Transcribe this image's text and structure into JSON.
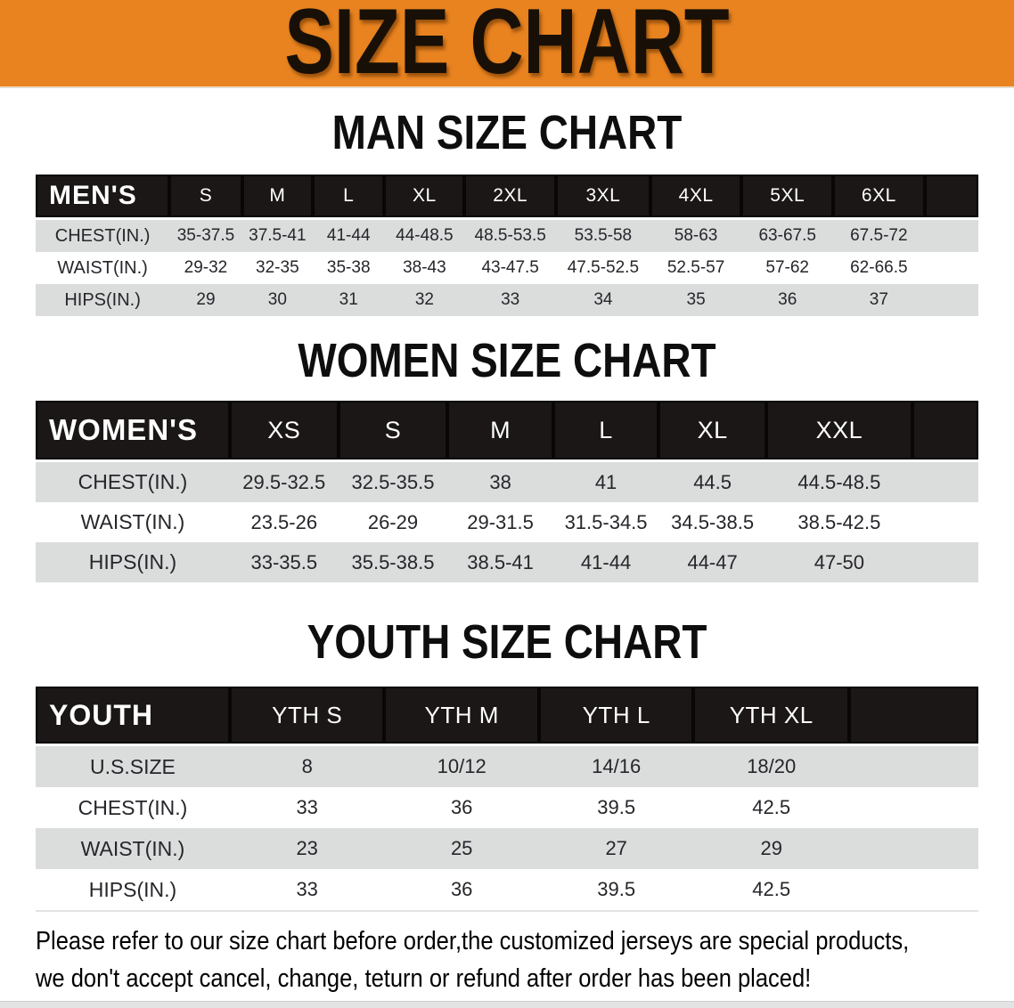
{
  "banner": {
    "title": "SIZE CHART",
    "bg_color": "#E8831F",
    "text_color": "#181007"
  },
  "chart_data": [
    {
      "type": "table",
      "title": "MAN SIZE CHART",
      "header_label": "MEN'S",
      "columns": [
        "S",
        "M",
        "L",
        "XL",
        "2XL",
        "3XL",
        "4XL",
        "5XL",
        "6XL"
      ],
      "rows": [
        {
          "label": "CHEST(IN.)",
          "values": [
            "35-37.5",
            "37.5-41",
            "41-44",
            "44-48.5",
            "48.5-53.5",
            "53.5-58",
            "58-63",
            "63-67.5",
            "67.5-72"
          ]
        },
        {
          "label": "WAIST(IN.)",
          "values": [
            "29-32",
            "32-35",
            "35-38",
            "38-43",
            "43-47.5",
            "47.5-52.5",
            "52.5-57",
            "57-62",
            "62-66.5"
          ]
        },
        {
          "label": "HIPS(IN.)",
          "values": [
            "29",
            "30",
            "31",
            "32",
            "33",
            "34",
            "35",
            "36",
            "37"
          ]
        }
      ]
    },
    {
      "type": "table",
      "title": "WOMEN SIZE CHART",
      "header_label": "WOMEN'S",
      "columns": [
        "XS",
        "S",
        "M",
        "L",
        "XL",
        "XXL"
      ],
      "rows": [
        {
          "label": "CHEST(IN.)",
          "values": [
            "29.5-32.5",
            "32.5-35.5",
            "38",
            "41",
            "44.5",
            "44.5-48.5"
          ]
        },
        {
          "label": "WAIST(IN.)",
          "values": [
            "23.5-26",
            "26-29",
            "29-31.5",
            "31.5-34.5",
            "34.5-38.5",
            "38.5-42.5"
          ]
        },
        {
          "label": "HIPS(IN.)",
          "values": [
            "33-35.5",
            "35.5-38.5",
            "38.5-41",
            "41-44",
            "44-47",
            "47-50"
          ]
        }
      ]
    },
    {
      "type": "table",
      "title": "YOUTH SIZE CHART",
      "header_label": "YOUTH",
      "columns": [
        "YTH S",
        "YTH M",
        "YTH L",
        "YTH XL"
      ],
      "rows": [
        {
          "label": "U.S.SIZE",
          "values": [
            "8",
            "10/12",
            "14/16",
            "18/20"
          ]
        },
        {
          "label": "CHEST(IN.)",
          "values": [
            "33",
            "36",
            "39.5",
            "42.5"
          ]
        },
        {
          "label": "WAIST(IN.)",
          "values": [
            "23",
            "25",
            "27",
            "29"
          ]
        },
        {
          "label": "HIPS(IN.)",
          "values": [
            "33",
            "36",
            "39.5",
            "42.5"
          ]
        }
      ]
    }
  ],
  "table_style": {
    "header_bar_color": "#1b1716",
    "header_text_color": "#ffffff",
    "stripe_color": "#dbdcdc",
    "value_text_color": "#26262b"
  },
  "disclaimer": {
    "line1": "Please refer to our size chart before order,the customized jerseys are special products,",
    "line2": "we don't accept cancel, change, teturn or refund after order has been placed!",
    "color": "#A92A24"
  }
}
